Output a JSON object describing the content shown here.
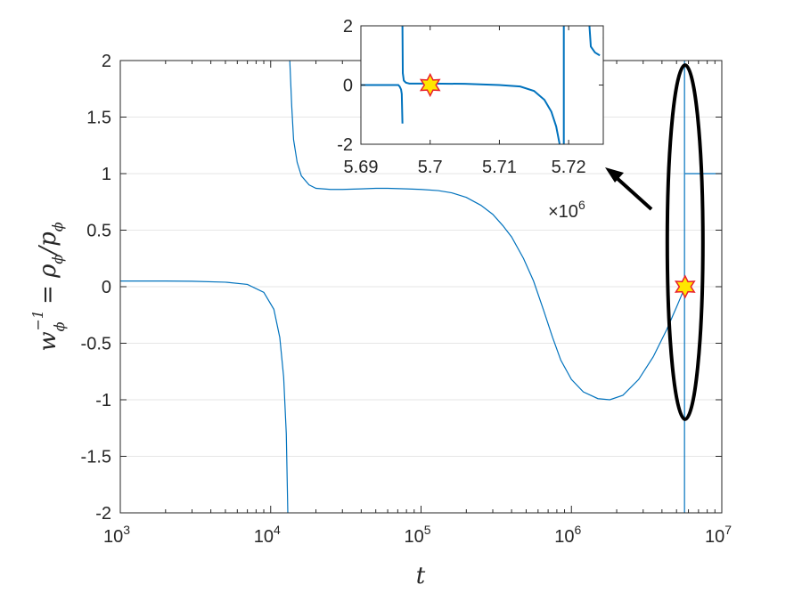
{
  "chart_data": [
    {
      "type": "line",
      "title": "",
      "xlabel": "t",
      "ylabel_parts": {
        "base": "w",
        "sub": "ϕ",
        "sup": "−1",
        "rhs": "= ρ",
        "rhs_sub": "ϕ",
        "slash": "/p",
        "slash_sub": "ϕ"
      },
      "xscale": "log",
      "xlim": [
        1000,
        10000000
      ],
      "ylim": [
        -2,
        2
      ],
      "grid": "y-major",
      "x_tick_labels": [
        {
          "value": 1000,
          "base": "10",
          "exp": "3"
        },
        {
          "value": 10000,
          "base": "10",
          "exp": "4"
        },
        {
          "value": 100000,
          "base": "10",
          "exp": "5"
        },
        {
          "value": 1000000,
          "base": "10",
          "exp": "6"
        },
        {
          "value": 10000000,
          "base": "10",
          "exp": "7"
        }
      ],
      "y_tick_labels": [
        "2",
        "1.5",
        "1",
        "0.5",
        "0",
        "-0.5",
        "-1",
        "-1.5",
        "-2"
      ],
      "y_ticks": [
        2,
        1.5,
        1,
        0.5,
        0,
        -0.5,
        -1,
        -1.5,
        -2
      ],
      "series": [
        {
          "color": "#0072BD",
          "segments": [
            [
              [
                1000,
                0.05
              ],
              [
                2000,
                0.05
              ],
              [
                3000,
                0.048
              ],
              [
                5000,
                0.04
              ],
              [
                7000,
                0.02
              ],
              [
                9000,
                -0.05
              ],
              [
                10500,
                -0.2
              ],
              [
                11500,
                -0.45
              ],
              [
                12200,
                -0.8
              ],
              [
                12700,
                -1.3
              ],
              [
                13000,
                -2.0
              ]
            ],
            [
              [
                13400,
                2.0
              ],
              [
                13800,
                1.6
              ],
              [
                14200,
                1.3
              ],
              [
                15000,
                1.1
              ],
              [
                16000,
                0.98
              ],
              [
                18000,
                0.9
              ],
              [
                20000,
                0.87
              ],
              [
                25000,
                0.86
              ],
              [
                30000,
                0.86
              ],
              [
                40000,
                0.865
              ],
              [
                50000,
                0.87
              ],
              [
                60000,
                0.87
              ],
              [
                80000,
                0.865
              ],
              [
                100000,
                0.86
              ],
              [
                130000,
                0.85
              ],
              [
                160000,
                0.83
              ],
              [
                200000,
                0.79
              ],
              [
                250000,
                0.72
              ],
              [
                300000,
                0.64
              ],
              [
                350000,
                0.54
              ],
              [
                400000,
                0.44
              ],
              [
                480000,
                0.25
              ],
              [
                560000,
                0.05
              ],
              [
                650000,
                -0.2
              ],
              [
                750000,
                -0.45
              ],
              [
                850000,
                -0.65
              ],
              [
                1000000,
                -0.82
              ],
              [
                1200000,
                -0.93
              ],
              [
                1500000,
                -0.99
              ],
              [
                1800000,
                -1.0
              ],
              [
                2200000,
                -0.96
              ],
              [
                2800000,
                -0.82
              ],
              [
                3500000,
                -0.62
              ],
              [
                4300000,
                -0.38
              ],
              [
                5000000,
                -0.18
              ],
              [
                5500000,
                -0.05
              ],
              [
                5650000,
                0.0
              ]
            ],
            [
              [
                5650000,
                2.0
              ],
              [
                5650000,
                -2.0
              ]
            ],
            [
              [
                5700000,
                1.0
              ],
              [
                10000000,
                1.0
              ]
            ]
          ]
        }
      ],
      "annotations": [
        {
          "type": "star",
          "x": 5700000,
          "y": 0,
          "fill": "#FFE600",
          "stroke": "#E8202A"
        },
        {
          "type": "ellipse",
          "center_x": 5700000,
          "center_y": 0,
          "y_halfrange": 1.55,
          "stroke": "#000000"
        }
      ]
    },
    {
      "type": "line",
      "title": "",
      "inset": true,
      "xlim": [
        5690000,
        5725000
      ],
      "ylim": [
        -2,
        2
      ],
      "x_tick_labels": [
        "5.69",
        "5.7",
        "5.71",
        "5.72"
      ],
      "x_ticks": [
        5690000,
        5700000,
        5710000,
        5720000
      ],
      "x_multiplier": {
        "base": "×10",
        "exp": "6"
      },
      "y_tick_labels": [
        "2",
        "0",
        "-2"
      ],
      "y_ticks": [
        2,
        0,
        -2
      ],
      "series": [
        {
          "color": "#0072BD",
          "segments": [
            [
              [
                5690000,
                0.0
              ],
              [
                5695400,
                0.0
              ],
              [
                5695600,
                -0.05
              ],
              [
                5695800,
                -0.15
              ],
              [
                5695900,
                -0.3
              ],
              [
                5696000,
                -1.3
              ]
            ],
            [
              [
                5696000,
                2.0
              ],
              [
                5696050,
                0.4
              ],
              [
                5696200,
                0.15
              ],
              [
                5696500,
                0.08
              ],
              [
                5697000,
                0.05
              ],
              [
                5700000,
                0.05
              ],
              [
                5705000,
                0.04
              ],
              [
                5710000,
                0.0
              ],
              [
                5713000,
                -0.05
              ],
              [
                5715000,
                -0.2
              ],
              [
                5716500,
                -0.5
              ],
              [
                5717500,
                -0.9
              ],
              [
                5718200,
                -1.4
              ],
              [
                5718700,
                -2.0
              ]
            ],
            [
              [
                5719300,
                -2.0
              ],
              [
                5719300,
                2.0
              ]
            ],
            [
              [
                5723000,
                2.0
              ],
              [
                5723200,
                1.3
              ],
              [
                5723800,
                1.1
              ],
              [
                5724500,
                1.0
              ]
            ],
            [
              [
                5725000,
                1.6
              ],
              [
                5726000,
                1.3
              ]
            ]
          ]
        }
      ],
      "annotations": [
        {
          "type": "star",
          "x": 5700000,
          "y": 0,
          "fill": "#FFE600",
          "stroke": "#E8202A"
        }
      ]
    }
  ],
  "arrow": {
    "color": "#000000"
  }
}
